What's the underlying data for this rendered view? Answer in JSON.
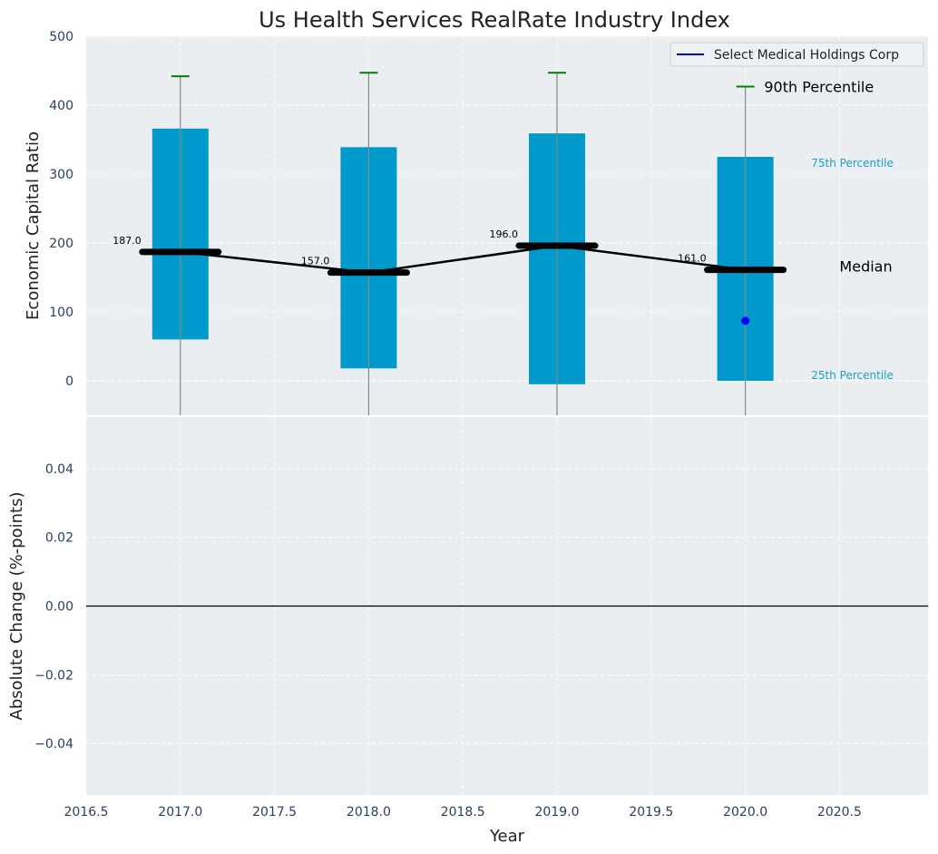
{
  "chart_data": {
    "type": "bar",
    "title": "Us Health Services RealRate Industry Index",
    "top_panel": {
      "ylabel": "Economic Capital Ratio",
      "ylim": [
        -50,
        500
      ],
      "yticks": [
        0,
        100,
        200,
        300,
        400,
        500
      ],
      "x": [
        2017.0,
        2018.0,
        2019.0,
        2020.0
      ],
      "p25": [
        60,
        18,
        -5,
        0
      ],
      "p75": [
        366,
        339,
        359,
        325
      ],
      "p90": [
        442,
        447,
        447,
        427
      ],
      "median": [
        187.0,
        157.0,
        196.0,
        161.0
      ],
      "median_labels": [
        "187.0",
        "157.0",
        "196.0",
        "161.0"
      ],
      "company": {
        "name": "Select Medical Holdings Corp",
        "x": [
          2020.0
        ],
        "y": [
          87
        ]
      },
      "annotations": {
        "p90": "90th Percentile",
        "p75": "75th Percentile",
        "median": "Median",
        "p25": "25th Percentile"
      },
      "legend_position": "top-right"
    },
    "bottom_panel": {
      "ylabel": "Absolute Change (%-points)",
      "ylim": [
        -0.055,
        0.055
      ],
      "yticks": [
        "−0.04",
        "−0.02",
        "0.00",
        "0.02",
        "0.04"
      ],
      "ytick_values": [
        -0.04,
        -0.02,
        0.0,
        0.02,
        0.04
      ]
    },
    "xlabel": "Year",
    "xlim": [
      2016.5,
      2020.97
    ],
    "xticks": [
      "2016.5",
      "2017.0",
      "2017.5",
      "2018.0",
      "2018.5",
      "2019.0",
      "2019.5",
      "2020.0",
      "2020.5"
    ],
    "xtick_values": [
      2016.5,
      2017.0,
      2017.5,
      2018.0,
      2018.5,
      2019.0,
      2019.5,
      2020.0,
      2020.5
    ],
    "grid": true,
    "colors": {
      "bar": "#0099cc",
      "median_line": "#000000",
      "p90_cap": "#008000",
      "company_marker": "#0000ff",
      "legend_line": "#0000cc",
      "panel_bg": "#eaeef0",
      "annotation_small": "#1a9fc9"
    }
  }
}
